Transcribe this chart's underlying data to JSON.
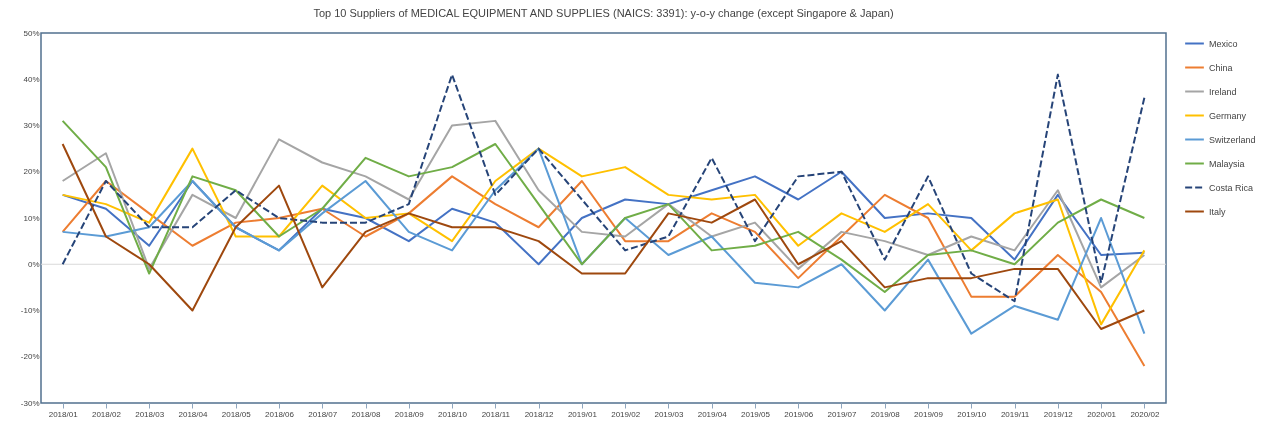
{
  "chart_data": {
    "type": "line",
    "title": "Top 10 Suppliers of MEDICAL EQUIPMENT AND SUPPLIES (NAICS: 3391): y-o-y change (except Singapore & Japan)",
    "categories": [
      "2018/01",
      "2018/02",
      "2018/03",
      "2018/04",
      "2018/05",
      "2018/06",
      "2018/07",
      "2018/08",
      "2018/09",
      "2018/10",
      "2018/11",
      "2018/12",
      "2019/01",
      "2019/02",
      "2019/03",
      "2019/04",
      "2019/05",
      "2019/06",
      "2019/07",
      "2019/08",
      "2019/09",
      "2019/10",
      "2019/11",
      "2019/12",
      "2020/01",
      "2020/02"
    ],
    "series": [
      {
        "name": "Mexico",
        "color": "#4472c4",
        "line_style": "solid",
        "values": [
          15,
          12,
          4,
          18,
          8,
          3,
          12,
          10,
          5,
          12,
          9,
          0,
          10,
          14,
          13,
          16,
          19,
          14,
          20,
          10,
          11,
          10,
          1,
          15,
          2,
          2.5
        ]
      },
      {
        "name": "China",
        "color": "#ed7d31",
        "line_style": "solid",
        "values": [
          7,
          18,
          11,
          4,
          9,
          10,
          12,
          6,
          11,
          19,
          13,
          8,
          18,
          5,
          5,
          11,
          7,
          -3,
          6,
          15,
          10,
          -7,
          -7,
          2,
          -6,
          -22
        ]
      },
      {
        "name": "Ireland",
        "color": "#a5a5a5",
        "line_style": "solid",
        "values": [
          18,
          24,
          -1,
          15,
          10,
          27,
          22,
          19,
          14,
          30,
          31,
          16,
          7,
          6,
          13,
          6,
          9,
          -1,
          7,
          5,
          2,
          6,
          3,
          16,
          -5,
          2
        ]
      },
      {
        "name": "Germany",
        "color": "#ffc000",
        "line_style": "solid",
        "values": [
          15,
          13,
          9,
          25,
          6,
          6,
          17,
          10,
          11,
          5,
          18,
          25,
          19,
          21,
          15,
          14,
          15,
          4,
          11,
          7,
          13,
          3,
          11,
          14,
          -13,
          3
        ]
      },
      {
        "name": "Switzerland",
        "color": "#5b9bd5",
        "line_style": "solid",
        "values": [
          7,
          6,
          8,
          18,
          8,
          3,
          11,
          18,
          7,
          3,
          16,
          25,
          0,
          10,
          2,
          6,
          -4,
          -5,
          0,
          -10,
          1,
          -15,
          -9,
          -12,
          10,
          -15
        ]
      },
      {
        "name": "Malaysia",
        "color": "#70ad47",
        "line_style": "solid",
        "values": [
          31,
          21,
          -2,
          19,
          16,
          6,
          12,
          23,
          19,
          21,
          26,
          13,
          0,
          10,
          13,
          3,
          4,
          7,
          1,
          -6,
          2,
          3,
          0,
          9,
          14,
          10
        ]
      },
      {
        "name": "Costa Rica",
        "color": "#264478",
        "line_style": "dashed",
        "values": [
          0,
          18,
          8,
          8,
          16,
          10,
          9,
          9,
          13,
          41,
          15,
          25,
          14,
          3,
          6,
          23,
          5,
          19,
          20,
          1,
          19,
          -2,
          -8,
          41,
          -4,
          36
        ]
      },
      {
        "name": "Italy",
        "color": "#9e480e",
        "line_style": "solid",
        "values": [
          26,
          6,
          0,
          -10,
          8,
          17,
          -5,
          7,
          11,
          8,
          8,
          5,
          -2,
          -2,
          11,
          9,
          14,
          0,
          5,
          -5,
          -3,
          -3,
          -1,
          -1,
          -14,
          -10
        ]
      }
    ],
    "ylim": [
      -30,
      50
    ],
    "yticks": [
      {
        "value": -30,
        "label": "-30%"
      },
      {
        "value": -20,
        "label": "-20%"
      },
      {
        "value": -10,
        "label": "-10%"
      },
      {
        "value": 0,
        "label": "0%"
      },
      {
        "value": 10,
        "label": "10%"
      },
      {
        "value": 20,
        "label": "20%"
      },
      {
        "value": 30,
        "label": "30%"
      },
      {
        "value": 40,
        "label": "40%"
      },
      {
        "value": 50,
        "label": "50%"
      }
    ],
    "ref_lines": [
      {
        "axis": "y",
        "value": 0,
        "color": "#d9d9d9"
      }
    ],
    "grid": false,
    "legend": "right",
    "marker": "none"
  }
}
